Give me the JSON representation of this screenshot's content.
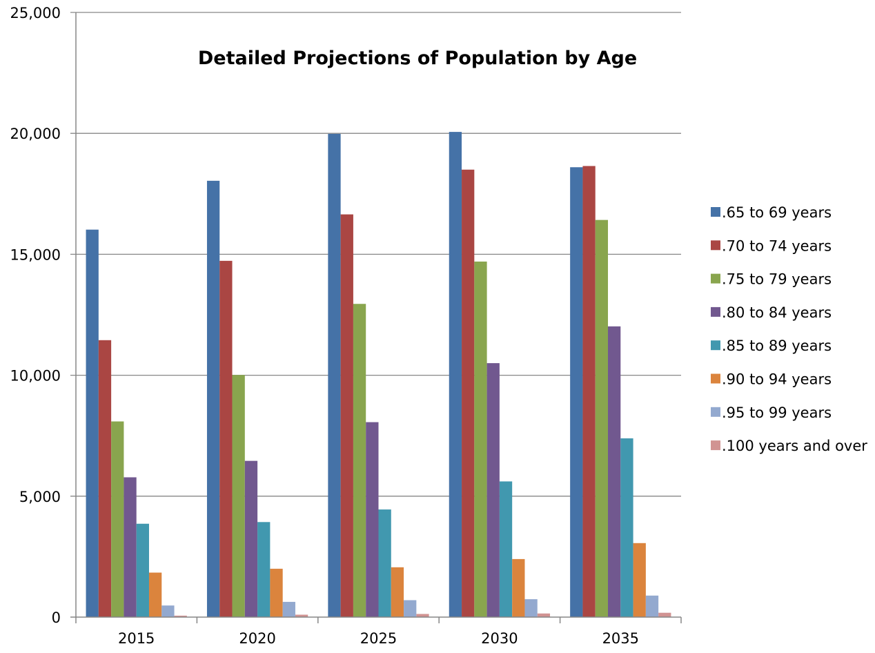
{
  "chart_data": {
    "type": "bar",
    "title": "Detailed Projections of Population by Age",
    "xlabel": "",
    "ylabel": "",
    "categories": [
      "2015",
      "2020",
      "2025",
      "2030",
      "2035"
    ],
    "ylim": [
      0,
      25000
    ],
    "yticks": [
      0,
      5000,
      10000,
      15000,
      20000,
      25000
    ],
    "ytick_labels": [
      "0",
      "5,000",
      "10,000",
      "15,000",
      "20,000",
      "25,000"
    ],
    "grid": true,
    "legend_position": "right",
    "series": [
      {
        "name": ".65 to 69 years",
        "color": "#4572A7",
        "values": [
          16020,
          18040,
          19980,
          20060,
          18600
        ]
      },
      {
        "name": ".70 to 74 years",
        "color": "#AA4643",
        "values": [
          11450,
          14730,
          16650,
          18500,
          18650
        ]
      },
      {
        "name": ".75 to 79 years",
        "color": "#89A54E",
        "values": [
          8090,
          10010,
          12950,
          14700,
          16420
        ]
      },
      {
        "name": ".80 to 84 years",
        "color": "#71588F",
        "values": [
          5780,
          6460,
          8060,
          10500,
          12020
        ]
      },
      {
        "name": ".85 to 89 years",
        "color": "#4198AF",
        "values": [
          3860,
          3930,
          4450,
          5610,
          7390
        ]
      },
      {
        "name": ".90 to 94 years",
        "color": "#DB843D",
        "values": [
          1840,
          2000,
          2060,
          2400,
          3060
        ]
      },
      {
        "name": ".95 to 99 years",
        "color": "#93A9CF",
        "values": [
          480,
          630,
          700,
          740,
          890
        ]
      },
      {
        "name": ".100 years and over",
        "color": "#D19392",
        "values": [
          60,
          100,
          130,
          150,
          180
        ]
      }
    ]
  }
}
